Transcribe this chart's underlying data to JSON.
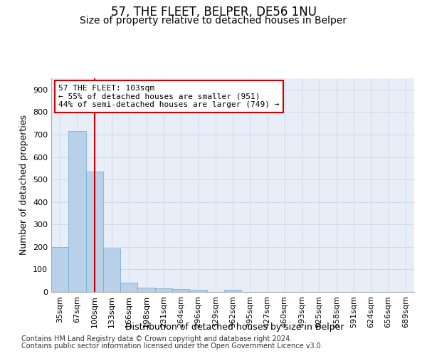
{
  "title": "57, THE FLEET, BELPER, DE56 1NU",
  "subtitle": "Size of property relative to detached houses in Belper",
  "xlabel": "Distribution of detached houses by size in Belper",
  "ylabel": "Number of detached properties",
  "footer_line1": "Contains HM Land Registry data © Crown copyright and database right 2024.",
  "footer_line2": "Contains public sector information licensed under the Open Government Licence v3.0.",
  "categories": [
    "35sqm",
    "67sqm",
    "100sqm",
    "133sqm",
    "166sqm",
    "198sqm",
    "231sqm",
    "264sqm",
    "296sqm",
    "329sqm",
    "362sqm",
    "395sqm",
    "427sqm",
    "460sqm",
    "493sqm",
    "525sqm",
    "558sqm",
    "591sqm",
    "624sqm",
    "656sqm",
    "689sqm"
  ],
  "values": [
    200,
    715,
    535,
    193,
    42,
    20,
    15,
    13,
    10,
    0,
    9,
    0,
    0,
    0,
    0,
    0,
    0,
    0,
    0,
    0,
    0
  ],
  "bar_color": "#b8d0e8",
  "bar_edge_color": "#6aaad4",
  "vline_x": 2,
  "vline_color": "#cc0000",
  "annotation_text": "57 THE FLEET: 103sqm\n← 55% of detached houses are smaller (951)\n44% of semi-detached houses are larger (749) →",
  "annotation_box_color": "#ffffff",
  "annotation_box_edge_color": "#cc0000",
  "ylim": [
    0,
    950
  ],
  "yticks": [
    0,
    100,
    200,
    300,
    400,
    500,
    600,
    700,
    800,
    900
  ],
  "background_color": "#e8eef8",
  "grid_color": "#d0d8e8",
  "title_fontsize": 12,
  "subtitle_fontsize": 10,
  "axis_label_fontsize": 9,
  "tick_fontsize": 8,
  "annotation_fontsize": 8,
  "footer_fontsize": 7
}
